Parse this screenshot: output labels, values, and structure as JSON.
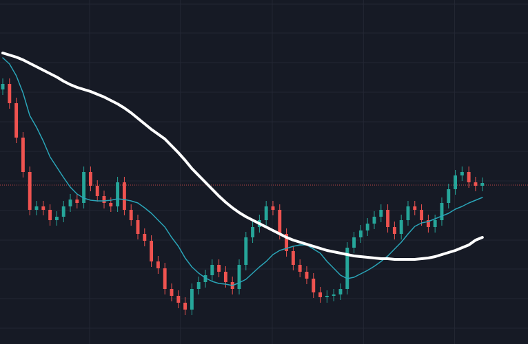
{
  "chart_data": {
    "type": "candlestick",
    "background": "#161a25",
    "grid": true,
    "grid_color": "#232734",
    "up_color": "#26a69a",
    "down_color": "#ef5350",
    "xlim": [
      -0.41,
      77.76
    ],
    "xticks": [
      12.85,
      26.3,
      39.9,
      53.4,
      66.9
    ],
    "ylim": [
      0,
      500
    ],
    "yticks": [
      23,
      66,
      109,
      151,
      194,
      237,
      280,
      323,
      366,
      409,
      452,
      494
    ],
    "open": [
      370,
      378,
      350,
      300,
      250,
      195,
      200,
      195,
      180,
      185,
      200,
      210,
      205,
      250,
      230,
      215,
      205,
      200,
      235,
      195,
      180,
      160,
      150,
      120,
      110,
      80,
      70,
      60,
      50,
      80,
      90,
      100,
      115,
      105,
      90,
      80,
      115,
      155,
      170,
      180,
      200,
      195,
      160,
      135,
      115,
      105,
      95,
      75,
      68,
      70,
      72,
      80,
      140,
      155,
      165,
      175,
      185,
      195,
      170,
      160,
      180,
      200,
      195,
      180,
      170,
      180,
      205,
      225,
      245,
      250,
      235,
      230
    ],
    "high": [
      386,
      386,
      358,
      308,
      258,
      208,
      208,
      203,
      193,
      208,
      218,
      218,
      258,
      258,
      238,
      223,
      213,
      243,
      243,
      203,
      188,
      168,
      158,
      128,
      118,
      88,
      78,
      68,
      88,
      98,
      108,
      123,
      123,
      113,
      98,
      123,
      163,
      178,
      188,
      208,
      208,
      203,
      168,
      143,
      123,
      113,
      103,
      83,
      78,
      80,
      88,
      148,
      163,
      173,
      183,
      193,
      203,
      203,
      178,
      188,
      208,
      208,
      203,
      188,
      188,
      213,
      233,
      253,
      258,
      258,
      243,
      242
    ],
    "low": [
      362,
      342,
      292,
      242,
      187,
      187,
      187,
      172,
      172,
      177,
      192,
      197,
      197,
      222,
      207,
      197,
      192,
      192,
      187,
      172,
      152,
      142,
      112,
      102,
      72,
      62,
      52,
      42,
      42,
      72,
      82,
      92,
      97,
      82,
      72,
      72,
      107,
      147,
      162,
      172,
      187,
      152,
      127,
      107,
      97,
      87,
      67,
      60,
      60,
      62,
      64,
      72,
      132,
      147,
      157,
      167,
      177,
      162,
      152,
      152,
      172,
      187,
      172,
      162,
      162,
      172,
      197,
      217,
      237,
      227,
      222,
      222
    ],
    "close": [
      378,
      350,
      300,
      250,
      195,
      200,
      195,
      180,
      185,
      200,
      210,
      205,
      250,
      230,
      215,
      205,
      200,
      235,
      195,
      180,
      160,
      150,
      120,
      110,
      80,
      70,
      60,
      50,
      80,
      90,
      100,
      115,
      105,
      90,
      80,
      115,
      155,
      170,
      180,
      200,
      195,
      160,
      135,
      115,
      105,
      95,
      75,
      68,
      70,
      72,
      80,
      140,
      155,
      165,
      175,
      185,
      195,
      170,
      160,
      180,
      200,
      195,
      180,
      170,
      180,
      205,
      225,
      245,
      250,
      235,
      230,
      234
    ],
    "lines": [
      {
        "color": "#2aa5b8",
        "values": [
          416,
          407,
          390,
          365,
          332,
          315,
          295,
          272,
          257,
          242,
          228,
          218,
          212,
          209,
          208,
          208,
          209,
          211,
          210,
          208,
          205,
          198,
          190,
          180,
          170,
          155,
          142,
          125,
          112,
          103,
          96,
          91,
          88,
          87,
          85,
          89,
          94,
          103,
          112,
          120,
          130,
          136,
          139,
          142,
          144,
          144,
          138,
          132,
          120,
          110,
          100,
          95,
          97,
          102,
          107,
          113,
          120,
          128,
          138,
          148,
          160,
          171,
          176,
          178,
          182,
          186,
          190,
          196,
          200,
          205,
          209,
          213
        ]
      },
      {
        "color": "#ffffff",
        "values": [
          423,
          420,
          417,
          413,
          408,
          403,
          398,
          393,
          388,
          382,
          377,
          373,
          370,
          367,
          363,
          359,
          354,
          349,
          343,
          336,
          328,
          320,
          312,
          305,
          298,
          288,
          278,
          267,
          255,
          245,
          235,
          225,
          215,
          206,
          198,
          191,
          185,
          180,
          175,
          170,
          165,
          160,
          155,
          151,
          148,
          145,
          142,
          139,
          136,
          134,
          132,
          130,
          128,
          127,
          126,
          125,
          124,
          124,
          123,
          123,
          123,
          123,
          124,
          125,
          127,
          130,
          133,
          136,
          140,
          144,
          151,
          155
        ]
      }
    ],
    "price_line": {
      "value": 231,
      "color": "#ef5350"
    }
  }
}
